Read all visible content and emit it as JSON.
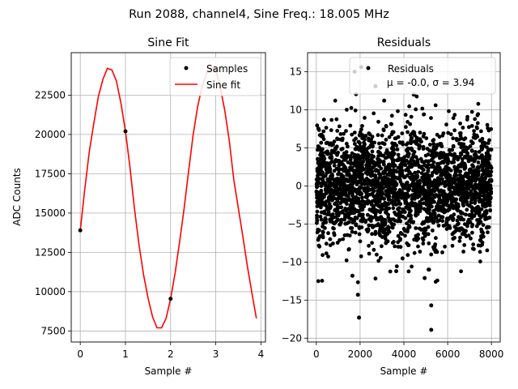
{
  "suptitle": "Run 2088, channel4, Sine Freq.: 18.005 MHz",
  "chart_data": [
    {
      "type": "line",
      "title": "Sine Fit",
      "xlabel": "Sample #",
      "ylabel": "ADC Counts",
      "xlim": [
        -0.2,
        4.1
      ],
      "ylim": [
        6800,
        25200
      ],
      "xticks": [
        0,
        1,
        2,
        3,
        4
      ],
      "xtick_labels": [
        "0",
        "1",
        "2",
        "3",
        "4"
      ],
      "yticks": [
        7500,
        10000,
        12500,
        15000,
        17500,
        20000,
        22500
      ],
      "ytick_labels": [
        "7500",
        "10000",
        "12500",
        "15000",
        "17500",
        "20000",
        "22500"
      ],
      "grid": true,
      "legend": {
        "position": "top-right",
        "entries": [
          "Samples",
          "Sine fit"
        ]
      },
      "samples": {
        "name": "Samples",
        "color": "#000000",
        "x": [
          0,
          1,
          2,
          3
        ],
        "y": [
          13900,
          20200,
          9550,
          24100
        ]
      },
      "fit": {
        "name": "Sine fit",
        "color": "#ff0000",
        "x": [
          0,
          0.1,
          0.2,
          0.3,
          0.4,
          0.5,
          0.6,
          0.7,
          0.8,
          0.9,
          1.0,
          1.1,
          1.2,
          1.3,
          1.4,
          1.5,
          1.6,
          1.7,
          1.8,
          1.9,
          2.0,
          2.1,
          2.2,
          2.3,
          2.4,
          2.5,
          2.6,
          2.7,
          2.8,
          2.9,
          3.0,
          3.1,
          3.2,
          3.3,
          3.4,
          3.5,
          3.6,
          3.7,
          3.8,
          3.9
        ],
        "y": [
          13900,
          16500,
          18900,
          20700,
          22400,
          23500,
          24200,
          24100,
          23400,
          22000,
          20200,
          17900,
          15300,
          13000,
          11100,
          9600,
          8400,
          7700,
          7700,
          8300,
          9550,
          11200,
          13200,
          15300,
          17700,
          20000,
          21800,
          23100,
          23900,
          24200,
          24100,
          23000,
          21500,
          19600,
          17100,
          15300,
          13500,
          11600,
          9900,
          8300
        ]
      }
    },
    {
      "type": "scatter",
      "title": "Residuals",
      "xlabel": "Sample #",
      "ylabel": "",
      "xlim": [
        -400,
        8400
      ],
      "ylim": [
        -20.5,
        17.5
      ],
      "xticks": [
        0,
        2000,
        4000,
        6000,
        8000
      ],
      "xtick_labels": [
        "0",
        "2000",
        "4000",
        "6000",
        "8000"
      ],
      "yticks": [
        -20,
        -15,
        -10,
        -5,
        0,
        5,
        10,
        15
      ],
      "ytick_labels": [
        "−20",
        "−15",
        "−10",
        "−5",
        "0",
        "5",
        "10",
        "15"
      ],
      "grid": true,
      "legend": {
        "position": "top-right",
        "entries": [
          "Residuals"
        ],
        "stats_label": "μ = -0.0, σ = 3.94"
      },
      "n_points": 8000,
      "mean": -0.0,
      "std": 3.94,
      "color": "#000000",
      "outliers": [
        {
          "x": 2050,
          "y": 15.6
        },
        {
          "x": 1750,
          "y": 15.0
        },
        {
          "x": 2700,
          "y": 13.1
        },
        {
          "x": 3100,
          "y": 11.2
        },
        {
          "x": 1900,
          "y": -14.3
        },
        {
          "x": 1950,
          "y": -17.3
        },
        {
          "x": 5250,
          "y": -15.7
        },
        {
          "x": 5250,
          "y": -18.9
        },
        {
          "x": 1650,
          "y": -11.8
        },
        {
          "x": 4950,
          "y": -12.1
        },
        {
          "x": 3650,
          "y": -11.2
        },
        {
          "x": 5150,
          "y": -11.0
        },
        {
          "x": 4450,
          "y": 12.0
        }
      ]
    }
  ]
}
